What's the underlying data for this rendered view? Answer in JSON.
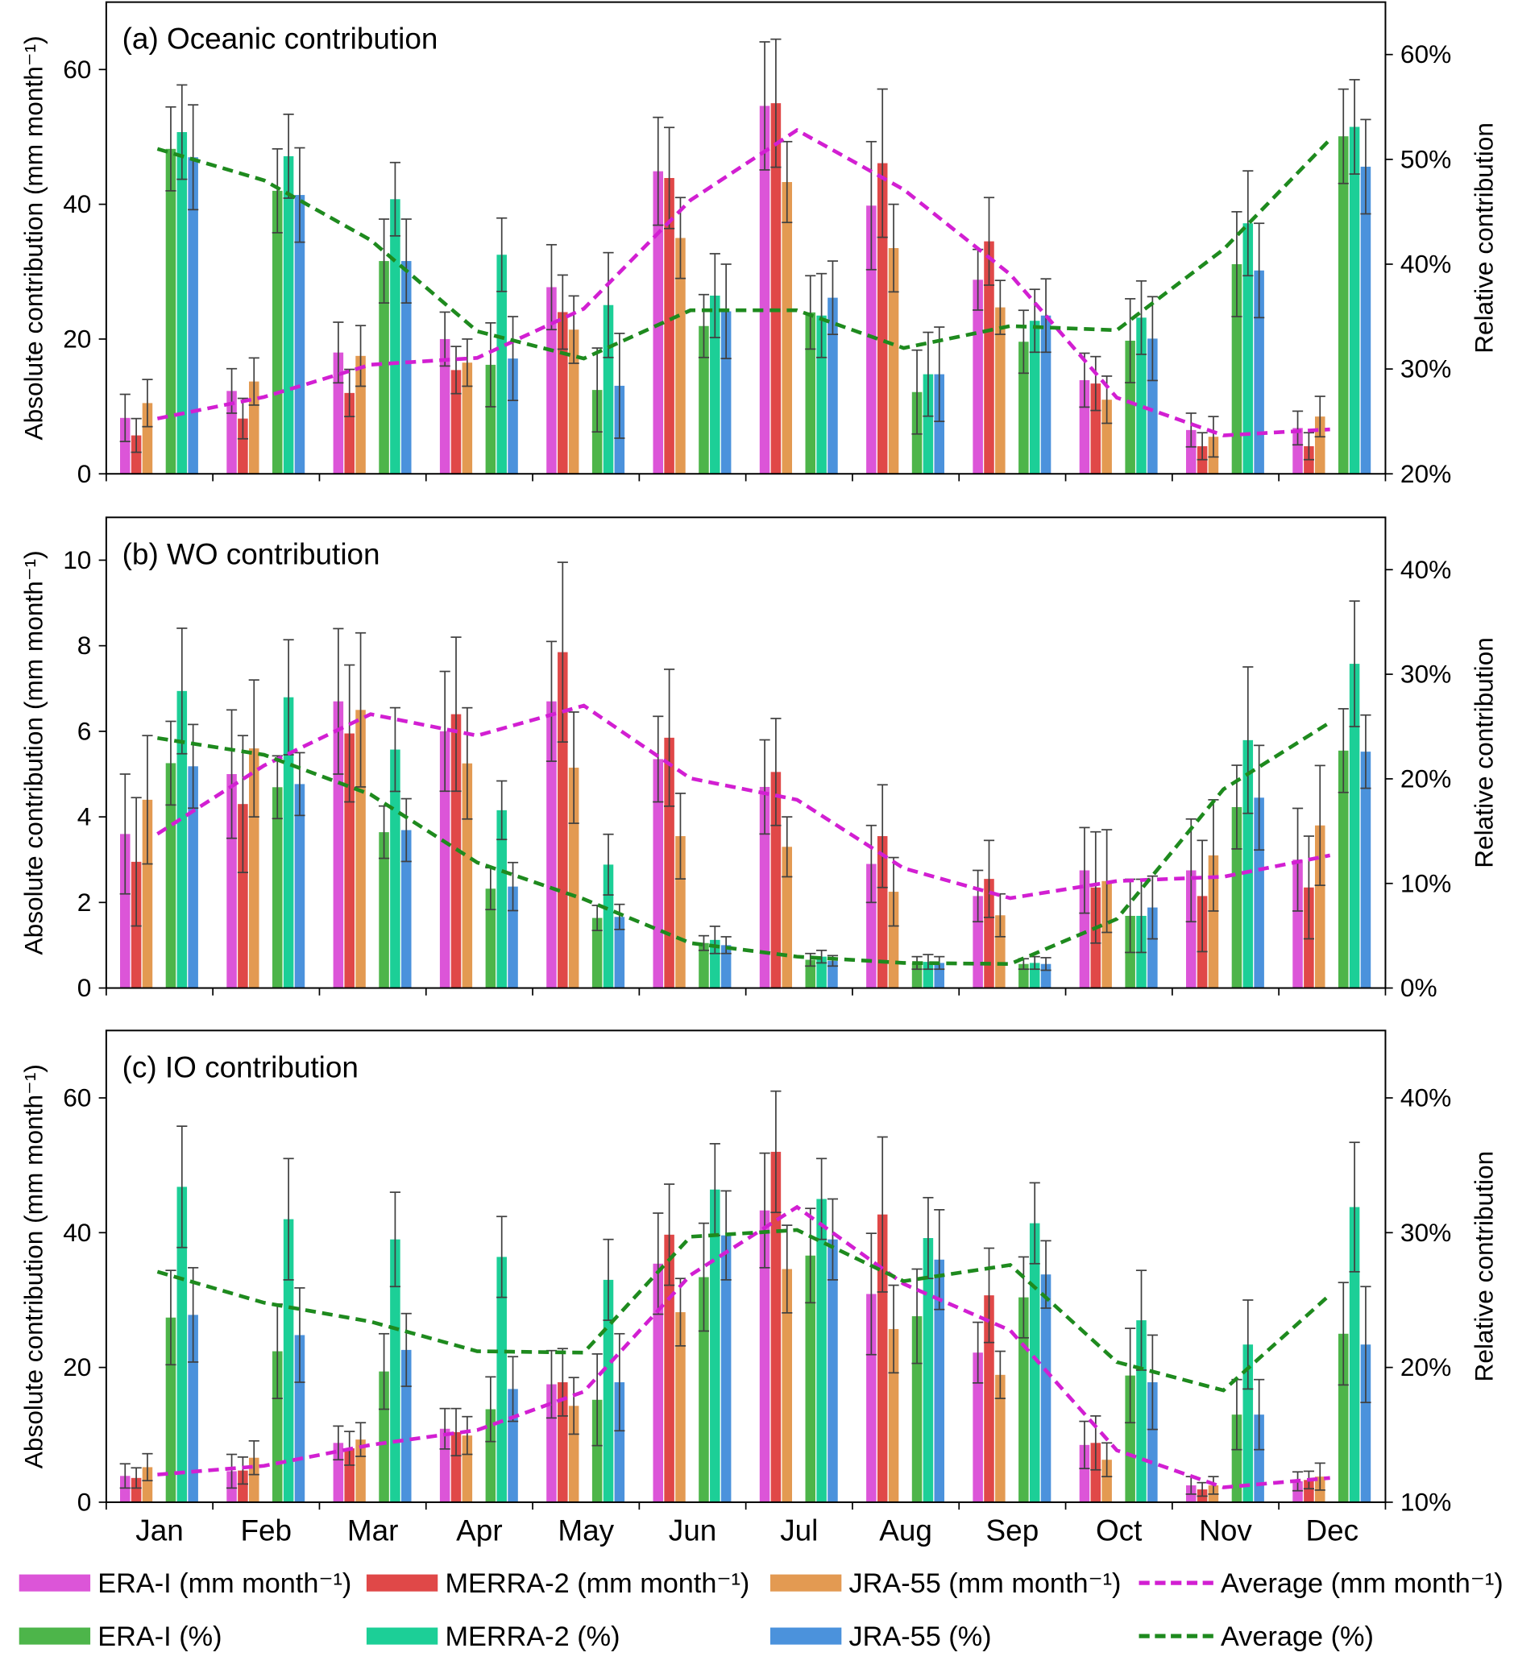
{
  "colors": {
    "ERA-I (mm month⁻¹)": "#dc55d8",
    "MERRA-2 (mm month⁻¹)": "#e04848",
    "JRA-55 (mm month⁻¹)": "#e39a52",
    "Average (mm month⁻¹)": "#d21fd2",
    "ERA-I (%)": "#4db54a",
    "MERRA-2 (%)": "#1ccf97",
    "JRA-55 (%)": "#4b92dc",
    "Average (%)": "#1e8a1e",
    "error_bar": "#404040"
  },
  "legend": {
    "placement": "bottom",
    "row1": [
      "ERA-I (mm month⁻¹)",
      "MERRA-2 (mm month⁻¹)",
      "JRA-55 (mm month⁻¹)",
      "Average (mm month⁻¹)"
    ],
    "row2": [
      "ERA-I (%)",
      "MERRA-2 (%)",
      "JRA-55 (%)",
      "Average (%)"
    ]
  },
  "chart_data": [
    {
      "type": "bar",
      "title": "(a) Oceanic contribution",
      "xlabel": "",
      "ylabel": "Absolute contribution (mm month⁻¹)",
      "y2label": "Relative contribution",
      "ylim": [
        0,
        70
      ],
      "y2lim": [
        20,
        65
      ],
      "yticks": [
        "0",
        "20",
        "40",
        "60"
      ],
      "ytick_values": [
        0,
        20,
        40,
        60
      ],
      "y2ticks": [
        "20%",
        "30%",
        "40%",
        "50%",
        "60%"
      ],
      "y2tick_values": [
        20,
        30,
        40,
        50,
        60
      ],
      "grid": false,
      "categories": [
        "Jan",
        "Feb",
        "Mar",
        "Apr",
        "May",
        "Jun",
        "Jul",
        "Aug",
        "Sep",
        "Oct",
        "Nov",
        "Dec"
      ],
      "series": [
        {
          "name": "ERA-I (mm month⁻¹)",
          "kind": "bar",
          "axis": "left",
          "values": [
            8.3,
            12.3,
            18,
            20,
            27.7,
            44.9,
            54.6,
            39.8,
            28.8,
            13.9,
            6.5,
            6.8
          ],
          "errors": [
            3.5,
            3.3,
            4.5,
            4,
            6.3,
            8,
            9.5,
            9.5,
            4.5,
            4,
            2.5,
            2.5
          ]
        },
        {
          "name": "MERRA-2 (mm month⁻¹)",
          "kind": "bar",
          "axis": "left",
          "values": [
            5.7,
            8.2,
            12,
            15.4,
            24,
            43.9,
            55,
            46.1,
            34.5,
            13.4,
            4.1,
            4.1
          ],
          "errors": [
            2.5,
            3,
            3.5,
            3.5,
            5.5,
            7.5,
            9.5,
            11,
            6.5,
            4,
            2,
            2
          ]
        },
        {
          "name": "JRA-55 (mm month⁻¹)",
          "kind": "bar",
          "axis": "left",
          "values": [
            10.5,
            13.7,
            17.5,
            16.5,
            21.4,
            35,
            43.3,
            33.5,
            24.7,
            11,
            5.5,
            8.5
          ],
          "errors": [
            3.5,
            3.5,
            4.5,
            3.5,
            5,
            6,
            6,
            6.5,
            4,
            3.5,
            3,
            3
          ]
        },
        {
          "name": "ERA-I (%)",
          "kind": "bar",
          "axis": "right",
          "values": [
            51,
            47,
            40.3,
            30.4,
            28,
            34.1,
            35.4,
            27.8,
            32.6,
            32.7,
            40,
            52.2
          ],
          "errors": [
            4,
            4,
            4,
            4,
            4,
            3,
            3.5,
            4,
            3,
            4,
            5,
            4.5
          ]
        },
        {
          "name": "MERRA-2 (%)",
          "kind": "bar",
          "axis": "right",
          "values": [
            52.6,
            50.3,
            46.2,
            40.9,
            36.1,
            37,
            35.1,
            29.5,
            34.6,
            34.9,
            43.9,
            53.1
          ],
          "errors": [
            4.5,
            4,
            3.5,
            3.5,
            5,
            4,
            4,
            4,
            3,
            3.5,
            5,
            4.5
          ]
        },
        {
          "name": "JRA-55 (%)",
          "kind": "bar",
          "axis": "right",
          "values": [
            50.2,
            46.6,
            40.3,
            31,
            28.4,
            35.5,
            36.8,
            29.5,
            35.1,
            32.9,
            39.4,
            49.3
          ],
          "errors": [
            5,
            4.5,
            4,
            4,
            5,
            4.5,
            3.5,
            4.5,
            3.5,
            4,
            4.5,
            4.5
          ]
        },
        {
          "name": "Average (mm month⁻¹)",
          "kind": "line",
          "axis": "left",
          "values": [
            8.2,
            11.4,
            16.2,
            17.2,
            24.5,
            40.6,
            51,
            42.2,
            29.6,
            11.3,
            5.7,
            6.6
          ]
        },
        {
          "name": "Average (%)",
          "kind": "line",
          "axis": "right",
          "values": [
            51,
            48,
            42.3,
            33.6,
            31,
            35.6,
            35.6,
            32,
            34.1,
            33.7,
            41.4,
            51.9
          ]
        }
      ]
    },
    {
      "type": "bar",
      "title": "(b) WO contribution",
      "xlabel": "",
      "ylabel": "Absolute contribution (mm month⁻¹)",
      "y2label": "Relative contribution",
      "ylim": [
        0,
        11
      ],
      "y2lim": [
        0,
        45
      ],
      "yticks": [
        "0",
        "2",
        "4",
        "6",
        "8",
        "10"
      ],
      "ytick_values": [
        0,
        2,
        4,
        6,
        8,
        10
      ],
      "y2ticks": [
        "0%",
        "10%",
        "20%",
        "30%",
        "40%"
      ],
      "y2tick_values": [
        0,
        10,
        20,
        30,
        40
      ],
      "grid": false,
      "categories": [
        "Jan",
        "Feb",
        "Mar",
        "Apr",
        "May",
        "Jun",
        "Jul",
        "Aug",
        "Sep",
        "Oct",
        "Nov",
        "Dec"
      ],
      "series": [
        {
          "name": "ERA-I (mm month⁻¹)",
          "kind": "bar",
          "axis": "left",
          "values": [
            3.6,
            5,
            6.7,
            6,
            6.7,
            5.35,
            4.7,
            2.9,
            2.15,
            2.75,
            2.75,
            3
          ],
          "errors": [
            1.4,
            1.5,
            1.7,
            1.4,
            1.4,
            1,
            1.1,
            0.9,
            0.6,
            1,
            1.2,
            1.2
          ]
        },
        {
          "name": "MERRA-2 (mm month⁻¹)",
          "kind": "bar",
          "axis": "left",
          "values": [
            2.95,
            4.3,
            5.95,
            6.4,
            7.85,
            5.85,
            5.05,
            3.55,
            2.55,
            2.35,
            2.15,
            2.35
          ],
          "errors": [
            1.5,
            1.6,
            1.6,
            1.8,
            2.1,
            1.6,
            1.25,
            1.2,
            0.9,
            1.3,
            1.3,
            1.2
          ]
        },
        {
          "name": "JRA-55 (mm month⁻¹)",
          "kind": "bar",
          "axis": "left",
          "values": [
            4.4,
            5.6,
            6.5,
            5.25,
            5.15,
            3.55,
            3.3,
            2.25,
            1.7,
            2.5,
            3.1,
            3.8
          ],
          "errors": [
            1.5,
            1.6,
            1.8,
            1.3,
            1.3,
            1,
            0.7,
            0.8,
            0.5,
            1.2,
            1.3,
            1.4
          ]
        },
        {
          "name": "ERA-I (%)",
          "kind": "bar",
          "axis": "right",
          "values": [
            21.5,
            19.2,
            14.9,
            9.5,
            6.7,
            4.3,
            2.7,
            2.4,
            2.3,
            6.9,
            17.3,
            22.7
          ],
          "errors": [
            4,
            3,
            2.5,
            2,
            1.2,
            0.7,
            0.6,
            0.6,
            0.5,
            3.5,
            4,
            4
          ]
        },
        {
          "name": "MERRA-2 (%)",
          "kind": "bar",
          "axis": "right",
          "values": [
            28.4,
            27.8,
            22.8,
            17,
            11.8,
            4.6,
            3,
            2.5,
            2.4,
            6.9,
            23.7,
            31
          ],
          "errors": [
            6,
            5.5,
            4,
            2.8,
            2.9,
            1.3,
            0.6,
            0.7,
            0.6,
            3.5,
            7,
            6
          ]
        },
        {
          "name": "JRA-55 (%)",
          "kind": "bar",
          "axis": "right",
          "values": [
            21.2,
            19.5,
            15.1,
            9.7,
            6.8,
            4.1,
            2.6,
            2.4,
            2.3,
            7.7,
            18.2,
            22.6
          ],
          "errors": [
            4,
            3,
            3,
            2.3,
            1.2,
            0.8,
            0.5,
            0.6,
            0.6,
            3,
            5,
            3.5
          ]
        },
        {
          "name": "Average (mm month⁻¹)",
          "kind": "line",
          "axis": "left",
          "values": [
            3.6,
            5.2,
            6.4,
            5.9,
            6.6,
            4.9,
            4.4,
            2.8,
            2.1,
            2.5,
            2.6,
            3.1
          ]
        },
        {
          "name": "Average (%)",
          "kind": "line",
          "axis": "right",
          "values": [
            23.9,
            22.3,
            18.5,
            12,
            8.5,
            4.3,
            3,
            2.4,
            2.3,
            6.6,
            19,
            25.4
          ]
        }
      ]
    },
    {
      "type": "bar",
      "title": "(c) IO contribution",
      "xlabel": "",
      "ylabel": "Absolute contribution (mm month⁻¹)",
      "y2label": "Relative contribution",
      "ylim": [
        0,
        70
      ],
      "y2lim": [
        10,
        45
      ],
      "yticks": [
        "0",
        "20",
        "40",
        "60"
      ],
      "ytick_values": [
        0,
        20,
        40,
        60
      ],
      "y2ticks": [
        "10%",
        "20%",
        "30%",
        "40%"
      ],
      "y2tick_values": [
        10,
        20,
        30,
        40
      ],
      "grid": false,
      "categories": [
        "Jan",
        "Feb",
        "Mar",
        "Apr",
        "May",
        "Jun",
        "Jul",
        "Aug",
        "Sep",
        "Oct",
        "Nov",
        "Dec"
      ],
      "series": [
        {
          "name": "ERA-I (mm month⁻¹)",
          "kind": "bar",
          "axis": "left",
          "values": [
            3.9,
            4.6,
            8.8,
            10.9,
            17.5,
            35.4,
            43.3,
            30.9,
            22.2,
            8.5,
            2.5,
            3.1
          ],
          "errors": [
            1.8,
            2.5,
            2.5,
            3,
            5,
            7.5,
            8.5,
            9,
            4.5,
            3.5,
            1.3,
            1.4
          ]
        },
        {
          "name": "MERRA-2 (mm month⁻¹)",
          "kind": "bar",
          "axis": "left",
          "values": [
            3.6,
            4.7,
            8,
            10.4,
            17.8,
            39.7,
            52,
            42.7,
            30.7,
            8.8,
            1.9,
            3.3
          ],
          "errors": [
            1.5,
            2,
            2.5,
            3.5,
            5,
            7.5,
            9,
            11.5,
            7,
            4,
            1,
            1.3
          ]
        },
        {
          "name": "JRA-55 (mm month⁻¹)",
          "kind": "bar",
          "axis": "left",
          "values": [
            5.2,
            6.6,
            9.3,
            9.9,
            14.3,
            28.2,
            34.6,
            25.7,
            18.9,
            6.3,
            2.5,
            3.8
          ],
          "errors": [
            2,
            2.5,
            2.5,
            2.8,
            4.2,
            5,
            6.5,
            6.5,
            3.5,
            2.5,
            1.3,
            2
          ]
        },
        {
          "name": "ERA-I (%)",
          "kind": "bar",
          "axis": "right",
          "values": [
            23.7,
            21.2,
            19.7,
            16.9,
            17.6,
            26.7,
            28.3,
            23.8,
            25.2,
            19.4,
            16.5,
            22.5
          ],
          "errors": [
            3.5,
            3.5,
            2.8,
            2.4,
            3.4,
            4,
            3.5,
            3.5,
            3,
            3.5,
            2.6,
            3.8
          ]
        },
        {
          "name": "MERRA-2 (%)",
          "kind": "bar",
          "axis": "right",
          "values": [
            33.4,
            31,
            29.5,
            28.2,
            26.5,
            33.2,
            32.5,
            29.6,
            30.7,
            23.5,
            21.7,
            31.9
          ],
          "errors": [
            4.5,
            4.5,
            3.5,
            3,
            3,
            3.4,
            3,
            3,
            3,
            3.7,
            3.3,
            4.8
          ]
        },
        {
          "name": "JRA-55 (%)",
          "kind": "bar",
          "axis": "right",
          "values": [
            23.9,
            22.4,
            21.3,
            18.4,
            18.9,
            29.8,
            29.5,
            28,
            26.9,
            18.9,
            16.5,
            21.7
          ],
          "errors": [
            3.5,
            3.5,
            2.7,
            2.4,
            3.6,
            3.3,
            3,
            3.7,
            2.5,
            3.5,
            2.6,
            4.3
          ]
        },
        {
          "name": "Average (mm month⁻¹)",
          "kind": "line",
          "axis": "left",
          "values": [
            4.1,
            5.4,
            8.5,
            10.7,
            16.4,
            33.7,
            43.8,
            32.4,
            25.5,
            7.7,
            2.2,
            3.6
          ]
        },
        {
          "name": "Average (%)",
          "kind": "line",
          "axis": "right",
          "values": [
            27.1,
            24.8,
            23.4,
            21.2,
            21.1,
            29.7,
            30.2,
            26.4,
            27.6,
            20.4,
            18.3,
            25.4
          ]
        }
      ]
    }
  ]
}
